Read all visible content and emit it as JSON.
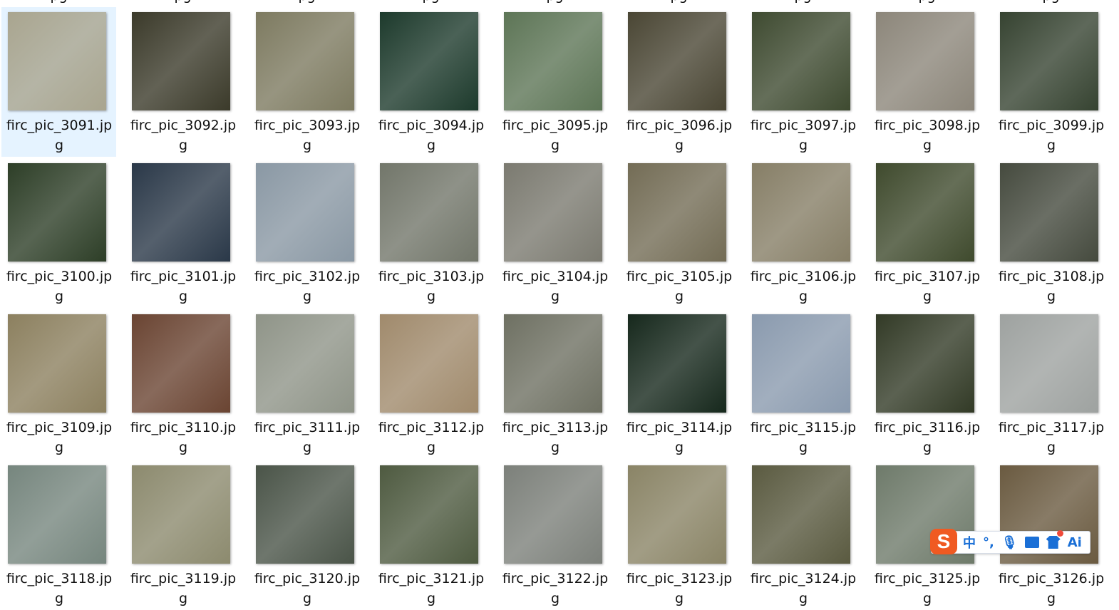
{
  "partial_row": [
    "pg",
    "pg",
    "pg",
    "pg",
    "pg",
    "pg",
    "pg",
    "pg",
    "pg"
  ],
  "selected_index": 0,
  "files": [
    {
      "name": "firc_pic_3091.jpg",
      "color": "#a9a58f"
    },
    {
      "name": "firc_pic_3092.jpg",
      "color": "#3b3a2a"
    },
    {
      "name": "firc_pic_3093.jpg",
      "color": "#7d7a60"
    },
    {
      "name": "firc_pic_3094.jpg",
      "color": "#1d3a2c"
    },
    {
      "name": "firc_pic_3095.jpg",
      "color": "#5d7556"
    },
    {
      "name": "firc_pic_3096.jpg",
      "color": "#4a4634"
    },
    {
      "name": "firc_pic_3097.jpg",
      "color": "#3e4a30"
    },
    {
      "name": "firc_pic_3098.jpg",
      "color": "#8c867a"
    },
    {
      "name": "firc_pic_3099.jpg",
      "color": "#364331"
    },
    {
      "name": "firc_pic_3100.jpg",
      "color": "#2d3e27"
    },
    {
      "name": "firc_pic_3101.jpg",
      "color": "#2a3848"
    },
    {
      "name": "firc_pic_3102.jpg",
      "color": "#8a98a4"
    },
    {
      "name": "firc_pic_3103.jpg",
      "color": "#72766a"
    },
    {
      "name": "firc_pic_3104.jpg",
      "color": "#7b7a70"
    },
    {
      "name": "firc_pic_3105.jpg",
      "color": "#736c55"
    },
    {
      "name": "firc_pic_3106.jpg",
      "color": "#867e66"
    },
    {
      "name": "firc_pic_3107.jpg",
      "color": "#3f4a2d"
    },
    {
      "name": "firc_pic_3108.jpg",
      "color": "#454a3e"
    },
    {
      "name": "firc_pic_3109.jpg",
      "color": "#8c805f"
    },
    {
      "name": "firc_pic_3110.jpg",
      "color": "#6a4432"
    },
    {
      "name": "firc_pic_3111.jpg",
      "color": "#8f9488"
    },
    {
      "name": "firc_pic_3112.jpg",
      "color": "#a08a6c"
    },
    {
      "name": "firc_pic_3113.jpg",
      "color": "#6e7062"
    },
    {
      "name": "firc_pic_3114.jpg",
      "color": "#16281c"
    },
    {
      "name": "firc_pic_3115.jpg",
      "color": "#8a9aae"
    },
    {
      "name": "firc_pic_3116.jpg",
      "color": "#323a26"
    },
    {
      "name": "firc_pic_3117.jpg",
      "color": "#9ea2a0"
    },
    {
      "name": "firc_pic_3118.jpg",
      "color": "#76867e"
    },
    {
      "name": "firc_pic_3119.jpg",
      "color": "#8c8a6e"
    },
    {
      "name": "firc_pic_3120.jpg",
      "color": "#4a5448"
    },
    {
      "name": "firc_pic_3121.jpg",
      "color": "#4e5a40"
    },
    {
      "name": "firc_pic_3122.jpg",
      "color": "#7c807a"
    },
    {
      "name": "firc_pic_3123.jpg",
      "color": "#8a8466"
    },
    {
      "name": "firc_pic_3124.jpg",
      "color": "#5a5a40"
    },
    {
      "name": "firc_pic_3125.jpg",
      "color": "#6e7a6a"
    },
    {
      "name": "firc_pic_3126.jpg",
      "color": "#6a5a40"
    }
  ],
  "ime": {
    "logo": "S",
    "mode": "中",
    "punct": "°,",
    "icons": [
      "sogou-logo-icon",
      "mic-icon",
      "keyboard-icon",
      "skin-icon",
      "ai-icon"
    ],
    "ai": "Ai",
    "accent": "#1a6fd6",
    "logo_color": "#f05a22"
  }
}
